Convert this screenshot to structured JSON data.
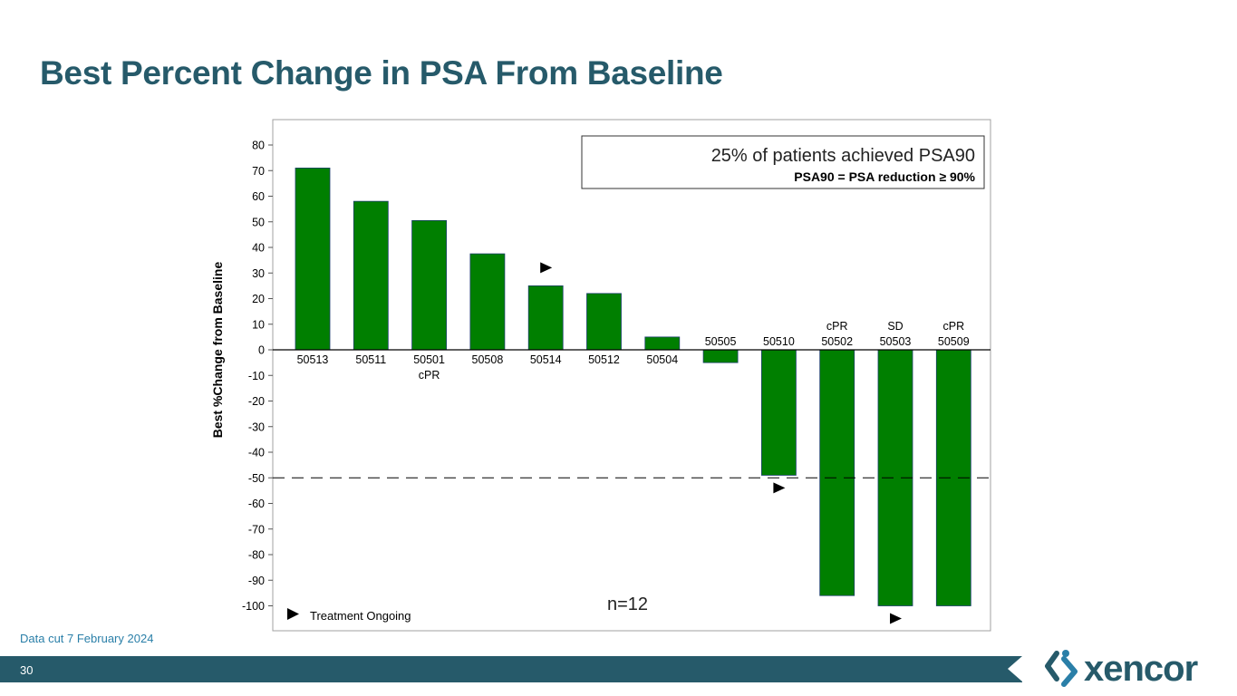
{
  "title": "Best Percent Change in PSA From Baseline",
  "footnote": "Data cut 7 February 2024",
  "page_number": "30",
  "logo_text": "xencor",
  "colors": {
    "bar": "#007f00",
    "title": "#265a6a",
    "footer": "#265a6a",
    "footnote": "#2a7fa8"
  },
  "chart_data": {
    "type": "bar",
    "ylabel": "Best %Change from Baseline",
    "ylim": [
      -105,
      82
    ],
    "yticks": [
      80,
      70,
      60,
      50,
      40,
      30,
      20,
      10,
      0,
      -10,
      -20,
      -30,
      -40,
      -50,
      -60,
      -70,
      -80,
      -90,
      -100
    ],
    "categories": [
      "50513",
      "50511",
      "50501",
      "50508",
      "50514",
      "50512",
      "50504",
      "50505",
      "50510",
      "50502",
      "50503",
      "50509"
    ],
    "values": [
      71,
      58,
      50.5,
      37.5,
      25,
      22,
      5,
      -5,
      -49,
      -96,
      -100,
      -100
    ],
    "response_labels": [
      "",
      "",
      "cPR",
      "",
      "",
      "",
      "",
      "",
      "",
      "cPR",
      "SD",
      "cPR"
    ],
    "treatment_ongoing": [
      false,
      false,
      false,
      false,
      true,
      false,
      false,
      false,
      true,
      false,
      true,
      false
    ],
    "reference_line": -50,
    "grid": false,
    "annotation_box": {
      "title": "25% of patients achieved PSA90",
      "subtitle": "PSA90 = PSA reduction ≥ 90%"
    },
    "n_label": "n=12",
    "legend": {
      "label": "Treatment Ongoing",
      "placement": "bottom-left"
    }
  }
}
